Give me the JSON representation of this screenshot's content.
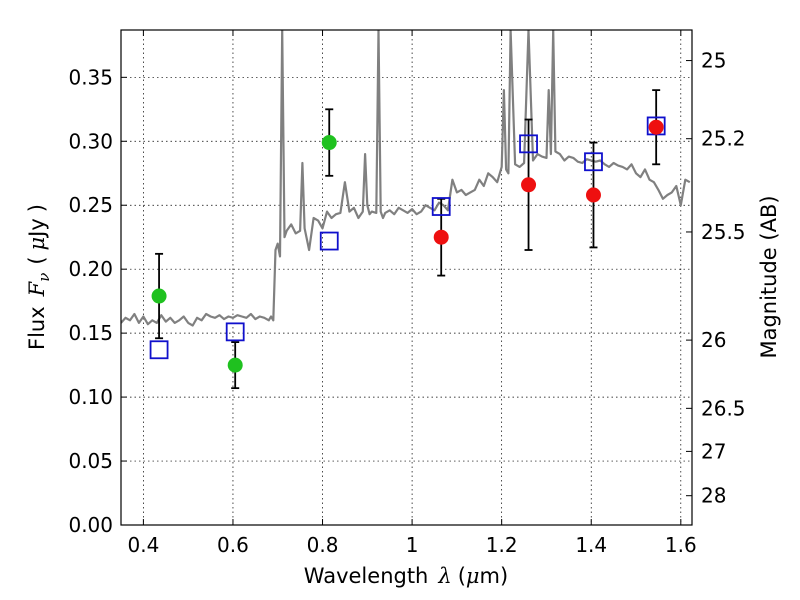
{
  "chart_data": {
    "type": "scatter",
    "title": "",
    "xlabel_text": "Wavelength",
    "xlabel_symbol": "λ",
    "xlabel_unit_open": "(",
    "xlabel_unit_mu": "μ",
    "xlabel_unit_rest": "m)",
    "ylabel_text": "Flux",
    "ylabel_symbol": "F",
    "ylabel_subscript": "ν",
    "ylabel_unit_open": "(",
    "ylabel_unit_mu": "μ",
    "ylabel_unit_rest": "Jy",
    "ylabel_unit_close": ")",
    "y2label": "Magnitude (AB)",
    "xlim": [
      0.35,
      1.625
    ],
    "ylim": [
      0.0,
      0.387
    ],
    "grid": true,
    "xticks": [
      0.4,
      0.6,
      0.8,
      1.0,
      1.2,
      1.4,
      1.6
    ],
    "xtick_labels": [
      "0.4",
      "0.6",
      "0.8",
      "1",
      "1.2",
      "1.4",
      "1.6"
    ],
    "yticks": [
      0.0,
      0.05,
      0.1,
      0.15,
      0.2,
      0.25,
      0.3,
      0.35
    ],
    "ytick_labels": [
      "0.00",
      "0.05",
      "0.10",
      "0.15",
      "0.20",
      "0.25",
      "0.30",
      "0.35"
    ],
    "y2ticks": [
      {
        "mag": 25,
        "label": "25"
      },
      {
        "mag": 25.2,
        "label": "25.2"
      },
      {
        "mag": 25.5,
        "label": "25.5"
      },
      {
        "mag": 26,
        "label": "26"
      },
      {
        "mag": 26.5,
        "label": "26.5"
      },
      {
        "mag": 27,
        "label": "27"
      },
      {
        "mag": 28,
        "label": "28"
      }
    ],
    "series": [
      {
        "name": "model-spectrum",
        "kind": "line",
        "color": "#808080",
        "x": [
          0.35,
          0.36,
          0.37,
          0.38,
          0.39,
          0.4,
          0.41,
          0.42,
          0.43,
          0.44,
          0.45,
          0.46,
          0.47,
          0.48,
          0.49,
          0.5,
          0.51,
          0.52,
          0.53,
          0.54,
          0.55,
          0.56,
          0.57,
          0.58,
          0.59,
          0.6,
          0.61,
          0.62,
          0.63,
          0.64,
          0.65,
          0.66,
          0.67,
          0.68,
          0.685,
          0.69,
          0.695,
          0.7,
          0.705,
          0.71,
          0.715,
          0.72,
          0.73,
          0.74,
          0.75,
          0.755,
          0.76,
          0.77,
          0.78,
          0.79,
          0.8,
          0.81,
          0.82,
          0.83,
          0.84,
          0.85,
          0.86,
          0.87,
          0.88,
          0.89,
          0.895,
          0.9,
          0.905,
          0.91,
          0.92,
          0.925,
          0.93,
          0.935,
          0.94,
          0.95,
          0.96,
          0.97,
          0.98,
          0.99,
          1.0,
          1.01,
          1.02,
          1.03,
          1.04,
          1.05,
          1.06,
          1.07,
          1.08,
          1.09,
          1.1,
          1.11,
          1.12,
          1.13,
          1.14,
          1.15,
          1.16,
          1.17,
          1.18,
          1.19,
          1.2,
          1.205,
          1.21,
          1.215,
          1.22,
          1.23,
          1.24,
          1.25,
          1.26,
          1.27,
          1.28,
          1.29,
          1.3,
          1.305,
          1.31,
          1.315,
          1.32,
          1.33,
          1.34,
          1.35,
          1.36,
          1.37,
          1.38,
          1.39,
          1.4,
          1.41,
          1.42,
          1.43,
          1.44,
          1.45,
          1.46,
          1.47,
          1.48,
          1.49,
          1.5,
          1.51,
          1.52,
          1.53,
          1.54,
          1.55,
          1.56,
          1.57,
          1.58,
          1.59,
          1.6,
          1.61,
          1.62
        ],
        "y": [
          0.158,
          0.162,
          0.16,
          0.165,
          0.158,
          0.163,
          0.157,
          0.16,
          0.158,
          0.164,
          0.159,
          0.162,
          0.158,
          0.16,
          0.163,
          0.158,
          0.156,
          0.162,
          0.16,
          0.165,
          0.163,
          0.162,
          0.164,
          0.161,
          0.163,
          0.162,
          0.164,
          0.163,
          0.162,
          0.165,
          0.161,
          0.163,
          0.162,
          0.16,
          0.163,
          0.16,
          0.215,
          0.22,
          0.21,
          0.387,
          0.225,
          0.23,
          0.235,
          0.228,
          0.23,
          0.283,
          0.232,
          0.215,
          0.24,
          0.238,
          0.232,
          0.245,
          0.24,
          0.243,
          0.244,
          0.268,
          0.245,
          0.248,
          0.24,
          0.245,
          0.29,
          0.25,
          0.243,
          0.245,
          0.244,
          0.387,
          0.245,
          0.24,
          0.244,
          0.246,
          0.243,
          0.248,
          0.246,
          0.244,
          0.247,
          0.243,
          0.245,
          0.25,
          0.248,
          0.246,
          0.252,
          0.25,
          0.246,
          0.27,
          0.26,
          0.262,
          0.258,
          0.26,
          0.262,
          0.27,
          0.265,
          0.275,
          0.272,
          0.268,
          0.28,
          0.34,
          0.278,
          0.275,
          0.387,
          0.282,
          0.28,
          0.283,
          0.387,
          0.285,
          0.29,
          0.288,
          0.287,
          0.34,
          0.29,
          0.387,
          0.292,
          0.29,
          0.285,
          0.288,
          0.287,
          0.284,
          0.283,
          0.286,
          0.285,
          0.284,
          0.285,
          0.282,
          0.28,
          0.283,
          0.281,
          0.28,
          0.278,
          0.282,
          0.275,
          0.272,
          0.278,
          0.27,
          0.268,
          0.262,
          0.255,
          0.258,
          0.26,
          0.265,
          0.25,
          0.27,
          0.268
        ]
      },
      {
        "name": "observed-green",
        "kind": "circle",
        "color": "#1fc11f",
        "points": [
          {
            "x": 0.435,
            "y": 0.179,
            "err": 0.033
          },
          {
            "x": 0.605,
            "y": 0.125,
            "err": 0.018
          },
          {
            "x": 0.815,
            "y": 0.299,
            "err": 0.026
          }
        ]
      },
      {
        "name": "observed-red",
        "kind": "circle",
        "color": "#ee1010",
        "points": [
          {
            "x": 1.065,
            "y": 0.225,
            "err": 0.03
          },
          {
            "x": 1.26,
            "y": 0.266,
            "err": 0.051
          },
          {
            "x": 1.405,
            "y": 0.258,
            "err": 0.041
          },
          {
            "x": 1.545,
            "y": 0.311,
            "err": 0.029
          }
        ]
      },
      {
        "name": "model-bandpass",
        "kind": "open-square",
        "color": "#1010cc",
        "points": [
          {
            "x": 0.435,
            "y": 0.137
          },
          {
            "x": 0.605,
            "y": 0.151
          },
          {
            "x": 0.815,
            "y": 0.222
          },
          {
            "x": 1.065,
            "y": 0.249
          },
          {
            "x": 1.26,
            "y": 0.298
          },
          {
            "x": 1.405,
            "y": 0.284
          },
          {
            "x": 1.545,
            "y": 0.312
          }
        ]
      }
    ]
  }
}
